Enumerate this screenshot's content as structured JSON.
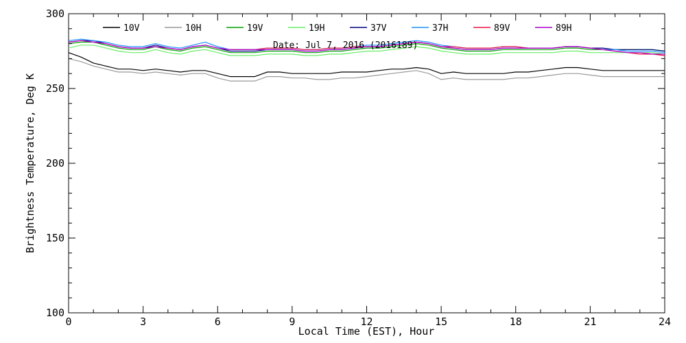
{
  "chart_data": {
    "type": "line",
    "title": "",
    "annotation": "Date: Jul  7, 2016 (2016189)",
    "xlabel": "Local Time (EST), Hour",
    "ylabel": "Brightness Temperature, Deg  K",
    "xlim": [
      0,
      24
    ],
    "ylim": [
      100,
      300
    ],
    "xticks": [
      0,
      3,
      6,
      9,
      12,
      15,
      18,
      21,
      24
    ],
    "yticks": [
      100,
      150,
      200,
      250,
      300
    ],
    "x": [
      0,
      0.5,
      1,
      1.5,
      2,
      2.5,
      3,
      3.5,
      4,
      4.5,
      5,
      5.5,
      6,
      6.5,
      7,
      7.5,
      8,
      8.5,
      9,
      9.5,
      10,
      10.5,
      11,
      11.5,
      12,
      12.5,
      13,
      13.5,
      14,
      14.5,
      15,
      15.5,
      16,
      16.5,
      17,
      17.5,
      18,
      18.5,
      19,
      19.5,
      20,
      20.5,
      21,
      21.5,
      22,
      22.5,
      23,
      23.5,
      24
    ],
    "legend_position": "top",
    "grid": false,
    "series": [
      {
        "name": "10V",
        "color": "#000000",
        "values": [
          274,
          271,
          267,
          265,
          263,
          263,
          262,
          263,
          262,
          261,
          262,
          262,
          260,
          258,
          258,
          258,
          261,
          261,
          260,
          260,
          260,
          260,
          261,
          261,
          261,
          262,
          263,
          263,
          264,
          263,
          260,
          261,
          260,
          260,
          260,
          260,
          261,
          261,
          262,
          263,
          264,
          264,
          263,
          262,
          262,
          262,
          262,
          262,
          262
        ]
      },
      {
        "name": "10H",
        "color": "#999999",
        "values": [
          270,
          268,
          265,
          263,
          261,
          261,
          260,
          261,
          260,
          259,
          260,
          260,
          257,
          255,
          255,
          255,
          258,
          258,
          257,
          257,
          256,
          256,
          257,
          257,
          258,
          259,
          260,
          261,
          262,
          260,
          256,
          257,
          256,
          256,
          256,
          256,
          257,
          257,
          258,
          259,
          260,
          260,
          259,
          258,
          258,
          258,
          258,
          258,
          258
        ]
      },
      {
        "name": "19V",
        "color": "#00a000",
        "values": [
          280,
          281,
          281,
          279,
          277,
          276,
          276,
          278,
          276,
          275,
          277,
          278,
          276,
          274,
          274,
          274,
          275,
          275,
          275,
          274,
          274,
          275,
          275,
          276,
          277,
          277,
          278,
          279,
          280,
          279,
          277,
          276,
          275,
          275,
          275,
          276,
          276,
          276,
          276,
          276,
          277,
          277,
          276,
          276,
          276,
          276,
          276,
          276,
          275
        ]
      },
      {
        "name": "19H",
        "color": "#66ee66",
        "values": [
          277,
          279,
          279,
          277,
          275,
          274,
          274,
          276,
          274,
          273,
          275,
          276,
          274,
          272,
          272,
          272,
          273,
          273,
          273,
          272,
          272,
          273,
          273,
          274,
          275,
          275,
          276,
          277,
          278,
          277,
          275,
          274,
          273,
          273,
          273,
          274,
          274,
          274,
          274,
          274,
          275,
          275,
          274,
          274,
          274,
          274,
          274,
          274,
          273
        ]
      },
      {
        "name": "37V",
        "color": "#000080",
        "values": [
          281,
          282,
          282,
          280,
          278,
          277,
          277,
          279,
          277,
          276,
          278,
          279,
          277,
          275,
          275,
          275,
          276,
          276,
          276,
          275,
          275,
          276,
          276,
          277,
          278,
          278,
          279,
          280,
          281,
          280,
          278,
          277,
          276,
          276,
          276,
          277,
          277,
          277,
          277,
          277,
          278,
          278,
          277,
          277,
          276,
          276,
          276,
          276,
          275
        ]
      },
      {
        "name": "37H",
        "color": "#1e90ff",
        "values": [
          282,
          283,
          282,
          281,
          279,
          278,
          278,
          280,
          278,
          277,
          279,
          281,
          278,
          276,
          276,
          276,
          277,
          277,
          277,
          276,
          276,
          277,
          277,
          278,
          279,
          279,
          280,
          281,
          282,
          281,
          279,
          278,
          277,
          277,
          277,
          278,
          278,
          277,
          277,
          277,
          278,
          278,
          277,
          276,
          276,
          275,
          275,
          275,
          274
        ]
      },
      {
        "name": "89V",
        "color": "#ee1144",
        "values": [
          281,
          282,
          281,
          280,
          278,
          277,
          277,
          278,
          277,
          276,
          278,
          279,
          277,
          276,
          276,
          276,
          277,
          277,
          277,
          276,
          276,
          277,
          277,
          278,
          278,
          278,
          279,
          280,
          281,
          280,
          278,
          278,
          277,
          277,
          277,
          278,
          278,
          277,
          277,
          277,
          278,
          278,
          277,
          276,
          275,
          274,
          273,
          273,
          272
        ]
      },
      {
        "name": "89H",
        "color": "#aa00cc",
        "values": [
          281,
          282,
          281,
          280,
          278,
          277,
          277,
          278,
          277,
          276,
          278,
          279,
          277,
          276,
          276,
          276,
          276,
          276,
          276,
          275,
          275,
          276,
          276,
          277,
          278,
          278,
          279,
          280,
          281,
          280,
          278,
          277,
          276,
          276,
          276,
          277,
          277,
          277,
          277,
          277,
          278,
          278,
          277,
          276,
          275,
          274,
          274,
          273,
          273
        ]
      }
    ]
  }
}
